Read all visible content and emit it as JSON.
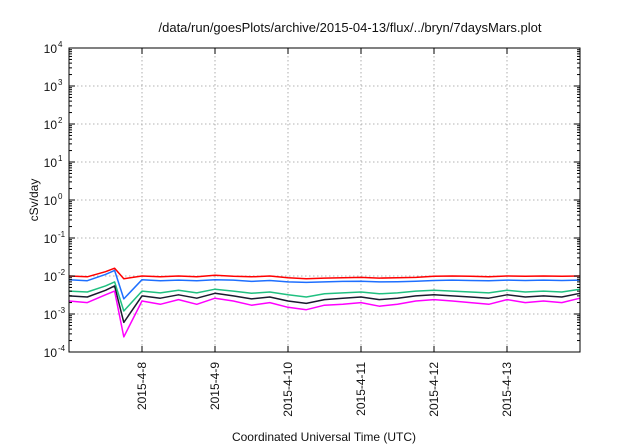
{
  "chart_data": {
    "type": "line",
    "title": "/data/run/goesPlots/archive/2015-04-13/flux/../bryn/7daysMars.plot",
    "xlabel": "Coordinated Universal Time (UTC)",
    "ylabel": "cSv/day",
    "y_scale": "log",
    "ylim": [
      0.0001,
      10000
    ],
    "y_ticks": [
      {
        "base": "10",
        "exp": "-4",
        "value": 0.0001
      },
      {
        "base": "10",
        "exp": "-3",
        "value": 0.001
      },
      {
        "base": "10",
        "exp": "-2",
        "value": 0.01
      },
      {
        "base": "10",
        "exp": "-1",
        "value": 0.1
      },
      {
        "base": "10",
        "exp": "0",
        "value": 1
      },
      {
        "base": "10",
        "exp": "1",
        "value": 10
      },
      {
        "base": "10",
        "exp": "2",
        "value": 100
      },
      {
        "base": "10",
        "exp": "3",
        "value": 1000
      },
      {
        "base": "10",
        "exp": "4",
        "value": 10000
      }
    ],
    "xlim": [
      "2015-04-07",
      "2015-04-14"
    ],
    "x_ticks": [
      {
        "label": "2015-4-8",
        "value": "2015-04-08"
      },
      {
        "label": "2015-4-9",
        "value": "2015-04-09"
      },
      {
        "label": "2015-4-10",
        "value": "2015-04-10"
      },
      {
        "label": "2015-4-11",
        "value": "2015-04-11"
      },
      {
        "label": "2015-4-12",
        "value": "2015-04-12"
      },
      {
        "label": "2015-4-13",
        "value": "2015-04-13"
      }
    ],
    "grid": true,
    "x": [
      "2015-04-07 00:00",
      "2015-04-07 06:00",
      "2015-04-07 12:00",
      "2015-04-07 15:00",
      "2015-04-07 18:00",
      "2015-04-08 00:00",
      "2015-04-08 06:00",
      "2015-04-08 12:00",
      "2015-04-08 18:00",
      "2015-04-09 00:00",
      "2015-04-09 06:00",
      "2015-04-09 12:00",
      "2015-04-09 18:00",
      "2015-04-10 00:00",
      "2015-04-10 06:00",
      "2015-04-10 12:00",
      "2015-04-10 18:00",
      "2015-04-11 00:00",
      "2015-04-11 06:00",
      "2015-04-11 12:00",
      "2015-04-11 18:00",
      "2015-04-12 00:00",
      "2015-04-12 06:00",
      "2015-04-12 12:00",
      "2015-04-12 18:00",
      "2015-04-13 00:00",
      "2015-04-13 06:00",
      "2015-04-13 12:00",
      "2015-04-13 18:00",
      "2015-04-14 00:00"
    ],
    "series": [
      {
        "color": "#ff0000",
        "values": [
          0.01,
          0.0095,
          0.013,
          0.016,
          0.0085,
          0.01,
          0.0095,
          0.01,
          0.0095,
          0.0105,
          0.0098,
          0.0095,
          0.01,
          0.009,
          0.0085,
          0.0088,
          0.009,
          0.0092,
          0.0088,
          0.009,
          0.0092,
          0.0098,
          0.01,
          0.0098,
          0.0095,
          0.01,
          0.0098,
          0.01,
          0.0098,
          0.01
        ]
      },
      {
        "color": "#1e6fff",
        "values": [
          0.008,
          0.0075,
          0.011,
          0.014,
          0.0025,
          0.008,
          0.0075,
          0.0078,
          0.0075,
          0.008,
          0.0078,
          0.0072,
          0.0076,
          0.007,
          0.0068,
          0.007,
          0.0072,
          0.0073,
          0.007,
          0.0071,
          0.0073,
          0.0076,
          0.0078,
          0.0076,
          0.0075,
          0.0078,
          0.0076,
          0.0078,
          0.0076,
          0.0078
        ]
      },
      {
        "color": "#20c080",
        "values": [
          0.004,
          0.0038,
          0.0055,
          0.007,
          0.0012,
          0.004,
          0.0036,
          0.0042,
          0.0036,
          0.0045,
          0.004,
          0.0035,
          0.0038,
          0.0032,
          0.0028,
          0.0034,
          0.0036,
          0.0038,
          0.0034,
          0.0036,
          0.004,
          0.0042,
          0.004,
          0.0038,
          0.0036,
          0.0042,
          0.0038,
          0.004,
          0.0038,
          0.0045
        ]
      },
      {
        "color": "#1a1a2e",
        "values": [
          0.003,
          0.0028,
          0.0042,
          0.0055,
          0.0006,
          0.003,
          0.0026,
          0.0032,
          0.0026,
          0.0035,
          0.003,
          0.0025,
          0.0028,
          0.0022,
          0.0019,
          0.0024,
          0.0026,
          0.0028,
          0.0024,
          0.0026,
          0.003,
          0.0032,
          0.003,
          0.0028,
          0.0026,
          0.0032,
          0.0028,
          0.003,
          0.0028,
          0.0035
        ]
      },
      {
        "color": "#ff00ff",
        "values": [
          0.0022,
          0.002,
          0.0032,
          0.004,
          0.00025,
          0.0022,
          0.0018,
          0.0024,
          0.0018,
          0.0026,
          0.0022,
          0.0017,
          0.002,
          0.0015,
          0.0013,
          0.0017,
          0.0018,
          0.002,
          0.0016,
          0.0018,
          0.0022,
          0.0024,
          0.0022,
          0.002,
          0.0018,
          0.0024,
          0.002,
          0.0022,
          0.002,
          0.0026
        ]
      }
    ]
  }
}
